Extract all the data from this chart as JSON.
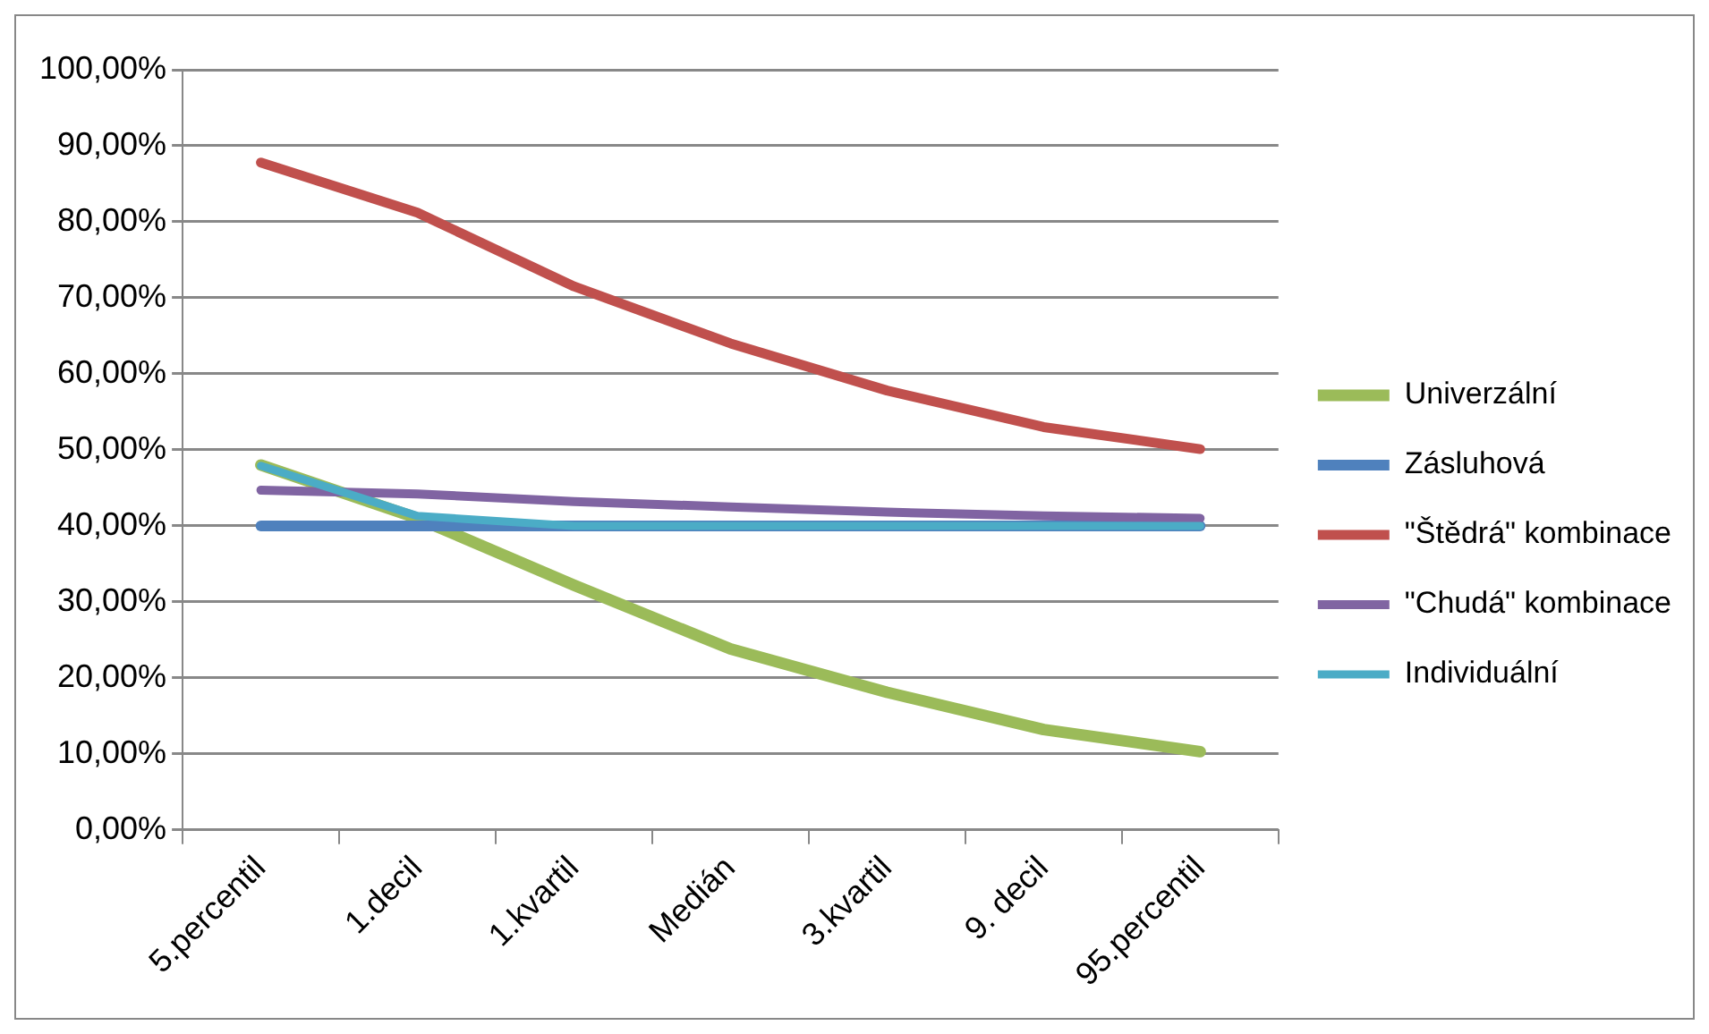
{
  "chart_data": {
    "type": "line",
    "categories": [
      "5.percentil",
      "1.decil",
      "1.kvartil",
      "Medián",
      "3.kvartil",
      "9. decil",
      "95.percentil"
    ],
    "series": [
      {
        "name": "Univerzální",
        "color": "#9bbb59",
        "values": [
          48,
          41,
          32.2,
          23.8,
          18.1,
          13.2,
          10.3
        ]
      },
      {
        "name": "Zásluhová",
        "color": "#4f81bd",
        "values": [
          40,
          40,
          40,
          40,
          40,
          40,
          40
        ]
      },
      {
        "name": "\"Štědrá\" kombinace",
        "color": "#c0504d",
        "values": [
          87.8,
          81.2,
          71.5,
          64,
          57.8,
          53,
          50.1
        ]
      },
      {
        "name": "\"Chudá\" kombinace",
        "color": "#8064a2",
        "values": [
          44.7,
          44.2,
          43.2,
          42.5,
          41.8,
          41.3,
          41
        ]
      },
      {
        "name": "Individuální",
        "color": "#4bacc6",
        "values": [
          47.9,
          41.3,
          40,
          40,
          40,
          40,
          40
        ]
      }
    ],
    "ylim": [
      0,
      100
    ],
    "yticks": [
      {
        "value": 0,
        "label": "0,00%"
      },
      {
        "value": 10,
        "label": "10,00%"
      },
      {
        "value": 20,
        "label": "20,00%"
      },
      {
        "value": 30,
        "label": "30,00%"
      },
      {
        "value": 40,
        "label": "40,00%"
      },
      {
        "value": 50,
        "label": "50,00%"
      },
      {
        "value": 60,
        "label": "60,00%"
      },
      {
        "value": 70,
        "label": "70,00%"
      },
      {
        "value": 80,
        "label": "80,00%"
      },
      {
        "value": 90,
        "label": "90,00%"
      },
      {
        "value": 100,
        "label": "100,00%"
      }
    ],
    "grid": "y",
    "legend": "right",
    "marker": "none",
    "line_style": "solid"
  }
}
